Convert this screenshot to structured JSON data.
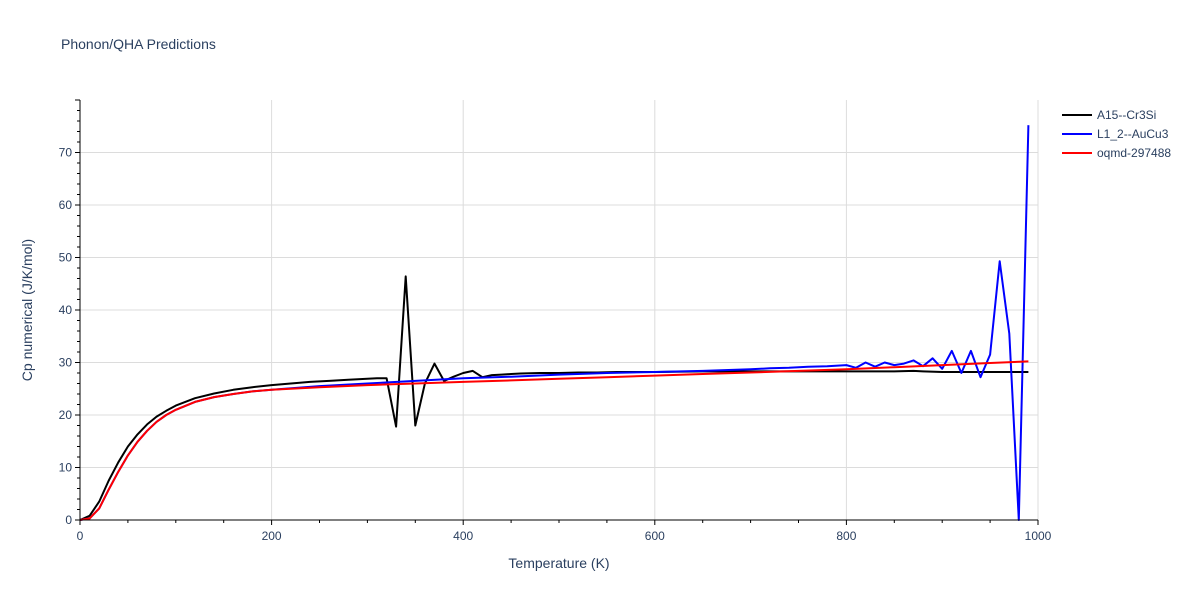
{
  "chart_data": {
    "type": "line",
    "title": "Phonon/QHA Predictions",
    "xlabel": "Temperature (K)",
    "ylabel": "Cp numerical (J/K/mol)",
    "xlim": [
      0,
      1000
    ],
    "ylim": [
      0,
      80
    ],
    "x_ticks": [
      0,
      200,
      400,
      600,
      800,
      1000
    ],
    "y_ticks": [
      0,
      10,
      20,
      30,
      40,
      50,
      60,
      70
    ],
    "grid": true,
    "legend_position": "top-right",
    "series": [
      {
        "name": "A15--Cr3Si",
        "color": "#000000",
        "x": [
          0,
          10,
          20,
          30,
          40,
          50,
          60,
          70,
          80,
          90,
          100,
          120,
          140,
          160,
          180,
          200,
          220,
          240,
          260,
          280,
          300,
          310,
          320,
          330,
          340,
          350,
          360,
          370,
          380,
          390,
          400,
          410,
          420,
          430,
          440,
          450,
          460,
          480,
          500,
          520,
          540,
          560,
          580,
          600,
          650,
          700,
          750,
          800,
          850,
          870,
          880,
          900,
          920,
          940,
          960,
          980,
          990
        ],
        "y": [
          0,
          0.8,
          3.5,
          7.5,
          11.0,
          14.0,
          16.3,
          18.2,
          19.7,
          20.8,
          21.8,
          23.2,
          24.1,
          24.8,
          25.3,
          25.7,
          26.0,
          26.3,
          26.5,
          26.7,
          26.9,
          27.0,
          27.0,
          17.8,
          46.4,
          18.0,
          26.0,
          29.8,
          26.5,
          27.3,
          28.0,
          28.4,
          27.2,
          27.6,
          27.7,
          27.8,
          27.9,
          28.0,
          28.0,
          28.1,
          28.1,
          28.2,
          28.2,
          28.2,
          28.3,
          28.3,
          28.3,
          28.3,
          28.3,
          28.4,
          28.3,
          28.2,
          28.2,
          28.2,
          28.2,
          28.2,
          28.2
        ]
      },
      {
        "name": "L1_2--AuCu3",
        "color": "#0000ff",
        "x": [
          0,
          10,
          20,
          30,
          40,
          50,
          60,
          70,
          80,
          90,
          100,
          120,
          140,
          160,
          180,
          200,
          250,
          300,
          350,
          400,
          450,
          500,
          550,
          600,
          650,
          700,
          720,
          740,
          760,
          780,
          800,
          810,
          820,
          830,
          840,
          850,
          860,
          870,
          880,
          890,
          900,
          910,
          920,
          930,
          940,
          950,
          960,
          970,
          980,
          990
        ],
        "y": [
          0,
          0.3,
          2.2,
          5.8,
          9.2,
          12.3,
          14.9,
          17.0,
          18.7,
          20.0,
          21.0,
          22.5,
          23.4,
          24.0,
          24.5,
          24.8,
          25.5,
          26.0,
          26.5,
          27.0,
          27.3,
          27.7,
          28.0,
          28.2,
          28.4,
          28.7,
          28.9,
          29.0,
          29.2,
          29.3,
          29.5,
          29.0,
          30.0,
          29.2,
          30.0,
          29.5,
          29.8,
          30.4,
          29.3,
          30.8,
          28.8,
          32.2,
          28.0,
          32.2,
          27.2,
          31.5,
          49.3,
          35.5,
          0,
          75.2
        ]
      },
      {
        "name": "oqmd-297488",
        "color": "#ff0000",
        "x": [
          0,
          10,
          20,
          30,
          40,
          50,
          60,
          70,
          80,
          90,
          100,
          120,
          140,
          160,
          180,
          200,
          250,
          300,
          350,
          400,
          450,
          500,
          550,
          600,
          650,
          700,
          750,
          800,
          850,
          900,
          950,
          990
        ],
        "y": [
          0,
          0.3,
          2.2,
          5.8,
          9.2,
          12.3,
          14.9,
          17.0,
          18.7,
          20.0,
          21.0,
          22.5,
          23.4,
          24.0,
          24.5,
          24.8,
          25.3,
          25.7,
          26.0,
          26.3,
          26.6,
          26.9,
          27.2,
          27.5,
          27.8,
          28.1,
          28.4,
          28.7,
          29.1,
          29.5,
          29.9,
          30.2
        ]
      }
    ]
  }
}
